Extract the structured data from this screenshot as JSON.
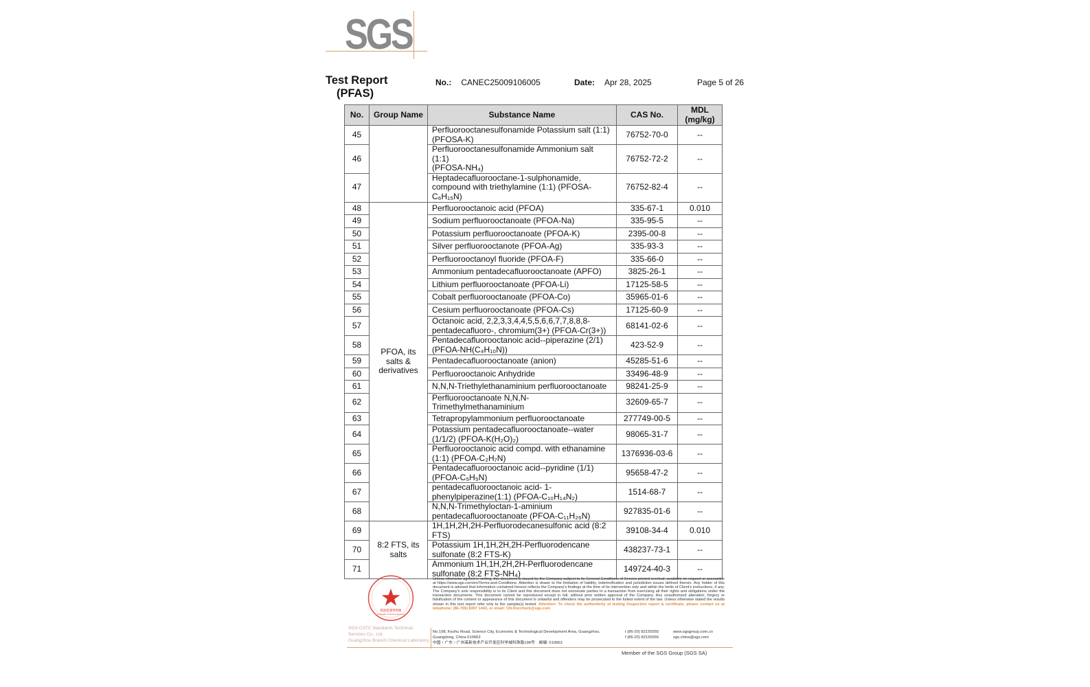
{
  "logo": {
    "text": "SGS"
  },
  "header": {
    "title": "Test Report",
    "subtitle": "(PFAS)",
    "no_label": "No.:",
    "no_value": "CANEC25009106005",
    "date_label": "Date:",
    "date_value": "Apr 28, 2025",
    "page": "Page 5 of 26"
  },
  "table": {
    "columns": [
      "No.",
      "Group Name",
      "Substance Name",
      "CAS No.",
      "MDL\n(mg/kg)"
    ],
    "groups": [
      {
        "name": "",
        "start": 45,
        "count": 3
      },
      {
        "name": "PFOA, its\nsalts &\nderivatives",
        "start": 48,
        "count": 21
      },
      {
        "name": "8:2 FTS, its\nsalts",
        "start": 69,
        "count": 3
      }
    ],
    "rows": [
      {
        "no": "45",
        "substance": "Perfluorooctanesulfonamide Potassium salt (1:1)\n(PFOSA-K)",
        "cas": "76752-70-0",
        "mdl": "--"
      },
      {
        "no": "46",
        "substance": "Perfluorooctanesulfonamide Ammonium salt (1:1)\n(PFOSA-NH₄)",
        "cas": "76752-72-2",
        "mdl": "--"
      },
      {
        "no": "47",
        "substance": "Heptadecafluorooctane-1-sulphonamide,\ncompound with triethylamine (1:1) (PFOSA-\nC₆H₁₅N)",
        "cas": "76752-82-4",
        "mdl": "--"
      },
      {
        "no": "48",
        "substance": "Perfluorooctanoic acid (PFOA)",
        "cas": "335-67-1",
        "mdl": "0.010"
      },
      {
        "no": "49",
        "substance": "Sodium perfluorooctanoate (PFOA-Na)",
        "cas": "335-95-5",
        "mdl": "--"
      },
      {
        "no": "50",
        "substance": "Potassium perfluorooctanoate (PFOA-K)",
        "cas": "2395-00-8",
        "mdl": "--"
      },
      {
        "no": "51",
        "substance": "Silver perfluorooctanote (PFOA-Ag)",
        "cas": "335-93-3",
        "mdl": "--"
      },
      {
        "no": "52",
        "substance": "Perfluorooctanoyl fluoride (PFOA-F)",
        "cas": "335-66-0",
        "mdl": "--"
      },
      {
        "no": "53",
        "substance": "Ammonium pentadecafluorooctanoate (APFO)",
        "cas": "3825-26-1",
        "mdl": "--"
      },
      {
        "no": "54",
        "substance": "Lithium perfluorooctanoate (PFOA-Li)",
        "cas": "17125-58-5",
        "mdl": "--"
      },
      {
        "no": "55",
        "substance": "Cobalt perfluorooctanoate (PFOA-Co)",
        "cas": "35965-01-6",
        "mdl": "--"
      },
      {
        "no": "56",
        "substance": "Cesium perfluorooctanoate (PFOA-Cs)",
        "cas": "17125-60-9",
        "mdl": "--"
      },
      {
        "no": "57",
        "substance": "Octanoic acid, 2,2,3,3,4,4,5,5,6,6,7,7,8,8,8-\npentadecafluoro-, chromium(3+) (PFOA-Cr(3+))",
        "cas": "68141-02-6",
        "mdl": "--"
      },
      {
        "no": "58",
        "substance": "Pentadecafluorooctanoic acid--piperazine (2/1)\n(PFOA-NH(C₄H₁₀N))",
        "cas": "423-52-9",
        "mdl": "--"
      },
      {
        "no": "59",
        "substance": "Pentadecafluorooctanoate (anion)",
        "cas": "45285-51-6",
        "mdl": "--"
      },
      {
        "no": "60",
        "substance": "Perfluorooctanoic Anhydride",
        "cas": "33496-48-9",
        "mdl": "--"
      },
      {
        "no": "61",
        "substance": "N,N,N-Triethylethanaminium perfluorooctanoate",
        "cas": "98241-25-9",
        "mdl": "--"
      },
      {
        "no": "62",
        "substance": "Perfluorooctanoate N,N,N-\nTrimethylmethanaminium",
        "cas": "32609-65-7",
        "mdl": "--"
      },
      {
        "no": "63",
        "substance": "Tetrapropylammonium perfluorooctanoate",
        "cas": "277749-00-5",
        "mdl": "--"
      },
      {
        "no": "64",
        "substance": "Potassium pentadecafluorooctanoate--water\n(1/1/2) (PFOA-K(H₂O)₂)",
        "cas": "98065-31-7",
        "mdl": "--"
      },
      {
        "no": "65",
        "substance": "Perfluorooctanoic acid compd. with ethanamine\n(1:1) (PFOA-C₂H₇N)",
        "cas": "1376936-03-6",
        "mdl": "--"
      },
      {
        "no": "66",
        "substance": "Pentadecafluorooctanoic acid--pyridine (1/1)\n(PFOA-C₅H₅N)",
        "cas": "95658-47-2",
        "mdl": "--"
      },
      {
        "no": "67",
        "substance": "pentadecafluorooctanoic acid- 1-\nphenylpiperazine(1:1) (PFOA-C₁₀H₁₄N₂)",
        "cas": "1514-68-7",
        "mdl": "--"
      },
      {
        "no": "68",
        "substance": "N,N,N-Trimethyloctan-1-aminium\npentadecafluorooctanoate (PFOA-C₁₁H₂₆N)",
        "cas": "927835-01-6",
        "mdl": "--"
      },
      {
        "no": "69",
        "substance": "1H,1H,2H,2H-Perfluorodecanesulfonic acid (8:2\nFTS)",
        "cas": "39108-34-4",
        "mdl": "0.010"
      },
      {
        "no": "70",
        "substance": "Potassium 1H,1H,2H,2H-Perfluorodencane\nsulfonate (8:2 FTS-K)",
        "cas": "438237-73-1",
        "mdl": "--"
      },
      {
        "no": "71",
        "substance": "Ammonium 1H,1H,2H,2H-Perfluorodencane\nsulfonate (8:2 FTS-NH₄)",
        "cas": "149724-40-3",
        "mdl": "--"
      }
    ]
  },
  "footer": {
    "seal_text": "检验检测专用章 Inspection & Testing Services",
    "seal_caption": "SGS-CSTC Standards Technical Services Co., Ltd.\nGuangzhou Branch Chemical Laboratory",
    "disclaimer": "Unless otherwise agreed in writing, this document is issued by the Company subject to its General Conditions of Service printed overleaf, available on request or accessible at https://www.sgs.com/en/Terms-and-Conditions. Attention is drawn to the limitation of liability, indemnification and jurisdiction issues defined therein. Any holder of this document is advised that information contained hereon reflects the Company's findings at the time of its intervention only and within the limits of Client's instructions, if any. The Company's sole responsibility is to its Client and this document does not exonerate parties to a transaction from exercising all their rights and obligations under the transaction documents. This document cannot be reproduced except in full, without prior written approval of the Company. Any unauthorized alteration, forgery or falsification of the content or appearance of this document is unlawful and offenders may be prosecuted to the fullest extent of the law. Unless otherwise stated the results shown in this test report refer only to the sample(s) tested.",
    "attention": "Attention: To check the authenticity of testing /inspection report & certificate, please contact us at telephone: (86-755) 8307 1443, or email: CN.Doccheck@sgs.com",
    "address": "No.198, Kezhu Road, Science City, Economic & Technological Development Area, Guangzhou, Guangdong, China 510663\n中国・广东・广州高新技术产业开发区科学城科珠路198号　邮编: 510663",
    "tel": "t (86-20) 82155555\nf (86-20) 82155555",
    "web": "www.sgsgroup.com.cn\nsgs.china@sgs.com",
    "member": "Member of the SGS Group (SGS SA)"
  },
  "colors": {
    "accent_line": "#d9a06a",
    "logo_gray": "#8a8a8a",
    "seal_red": "#d9362b",
    "header_fill": "#d9d9d9"
  }
}
